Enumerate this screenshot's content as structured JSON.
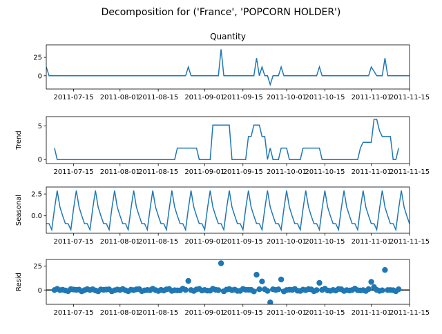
{
  "figure": {
    "suptitle": "Decomposition for ('France', 'POPCORN HOLDER')",
    "line_color": "#1f77b4"
  },
  "chart_data": {
    "type": "line",
    "x_start": "2011-07-05",
    "x_end": "2011-11-15",
    "x_tick_labels": [
      "2011-07-15",
      "2011-08-01",
      "2011-08-15",
      "2011-09-01",
      "2011-09-15",
      "2011-10-01",
      "2011-10-15",
      "2011-11-01",
      "2011-11-15"
    ],
    "x_ticks": [
      "2011-07-15",
      "2011-08-01",
      "2011-08-15",
      "2011-09-01",
      "2011-09-15",
      "2011-10-01",
      "2011-10-15",
      "2011-11-01",
      "2011-11-15"
    ],
    "panels": [
      {
        "name": "observed",
        "title": "Quantity",
        "ylabel": "",
        "kind": "line",
        "ylim": [
          -18,
          42
        ],
        "yticks": [
          0,
          25
        ],
        "ytick_labels": [
          "0",
          "25"
        ],
        "points": [
          [
            "2011-07-05",
            12
          ],
          [
            "2011-07-06",
            0
          ],
          [
            "2011-08-25",
            0
          ],
          [
            "2011-08-26",
            12
          ],
          [
            "2011-08-27",
            0
          ],
          [
            "2011-09-06",
            0
          ],
          [
            "2011-09-07",
            36
          ],
          [
            "2011-09-08",
            0
          ],
          [
            "2011-09-19",
            0
          ],
          [
            "2011-09-20",
            24
          ],
          [
            "2011-09-21",
            0
          ],
          [
            "2011-09-22",
            12
          ],
          [
            "2011-09-23",
            0
          ],
          [
            "2011-09-24",
            0
          ],
          [
            "2011-09-25",
            -12
          ],
          [
            "2011-09-26",
            0
          ],
          [
            "2011-09-28",
            0
          ],
          [
            "2011-09-29",
            12
          ],
          [
            "2011-09-30",
            0
          ],
          [
            "2011-10-12",
            0
          ],
          [
            "2011-10-13",
            12
          ],
          [
            "2011-10-14",
            0
          ],
          [
            "2011-10-31",
            0
          ],
          [
            "2011-11-01",
            12
          ],
          [
            "2011-11-02",
            6
          ],
          [
            "2011-11-03",
            0
          ],
          [
            "2011-11-05",
            0
          ],
          [
            "2011-11-06",
            24
          ],
          [
            "2011-11-07",
            0
          ],
          [
            "2011-11-15",
            0
          ],
          [
            "2011-11-16",
            12
          ]
        ]
      },
      {
        "name": "trend",
        "title": "",
        "ylabel": "Trend",
        "kind": "line",
        "ylim": [
          -0.6,
          6.4
        ],
        "yticks": [
          0,
          5
        ],
        "ytick_labels": [
          "0",
          "5"
        ],
        "segments": [
          [
            [
              "2011-07-08",
              1.71
            ],
            [
              "2011-07-09",
              0
            ],
            [
              "2011-08-21",
              0
            ],
            [
              "2011-08-22",
              1.71
            ],
            [
              "2011-08-29",
              1.71
            ],
            [
              "2011-08-30",
              0
            ],
            [
              "2011-09-03",
              0
            ],
            [
              "2011-09-04",
              5.14
            ],
            [
              "2011-09-10",
              5.14
            ],
            [
              "2011-09-11",
              0
            ],
            [
              "2011-09-16",
              0
            ],
            [
              "2011-09-17",
              3.43
            ],
            [
              "2011-09-18",
              3.43
            ],
            [
              "2011-09-19",
              5.14
            ],
            [
              "2011-09-21",
              5.14
            ],
            [
              "2011-09-22",
              3.43
            ],
            [
              "2011-09-23",
              3.43
            ],
            [
              "2011-09-24",
              0
            ],
            [
              "2011-09-25",
              1.71
            ],
            [
              "2011-09-26",
              0
            ],
            [
              "2011-09-28",
              0
            ],
            [
              "2011-09-29",
              1.71
            ],
            [
              "2011-10-01",
              1.71
            ],
            [
              "2011-10-02",
              0
            ],
            [
              "2011-10-06",
              0
            ],
            [
              "2011-10-07",
              1.71
            ],
            [
              "2011-10-13",
              1.71
            ],
            [
              "2011-10-14",
              0
            ],
            [
              "2011-10-27",
              0
            ],
            [
              "2011-10-28",
              1.71
            ],
            [
              "2011-10-29",
              2.57
            ],
            [
              "2011-11-01",
              2.57
            ],
            [
              "2011-11-02",
              6.0
            ],
            [
              "2011-11-03",
              6.0
            ],
            [
              "2011-11-04",
              4.29
            ],
            [
              "2011-11-05",
              3.43
            ],
            [
              "2011-11-08",
              3.43
            ],
            [
              "2011-11-09",
              0
            ],
            [
              "2011-11-10",
              0
            ],
            [
              "2011-11-11",
              1.71
            ]
          ]
        ]
      },
      {
        "name": "seasonal",
        "title": "",
        "ylabel": "Seasonal",
        "kind": "seasonal",
        "ylim": [
          -2.0,
          3.3
        ],
        "yticks": [
          0.0,
          2.5
        ],
        "ytick_labels": [
          "0.0",
          "2.5"
        ],
        "start": "2011-07-05",
        "end": "2011-11-16",
        "period_values": [
          -0.9,
          -0.9,
          -1.6,
          0.8,
          2.9,
          1.0,
          0.0
        ]
      },
      {
        "name": "resid",
        "title": "",
        "ylabel": "Resid",
        "kind": "scatter",
        "ylim": [
          -15,
          32
        ],
        "yticks": [
          0,
          25
        ],
        "ytick_labels": [
          "0",
          "25"
        ],
        "baseline": 0,
        "outliers": [
          [
            "2011-08-26",
            9.5
          ],
          [
            "2011-09-07",
            28
          ],
          [
            "2011-09-20",
            16
          ],
          [
            "2011-09-22",
            9
          ],
          [
            "2011-09-25",
            -13
          ],
          [
            "2011-09-29",
            11
          ],
          [
            "2011-10-13",
            7.5
          ],
          [
            "2011-11-01",
            8.5
          ],
          [
            "2011-11-02",
            3
          ],
          [
            "2011-11-06",
            21
          ]
        ],
        "baseline_noise": [
          -1.5,
          1.5
        ]
      }
    ]
  }
}
